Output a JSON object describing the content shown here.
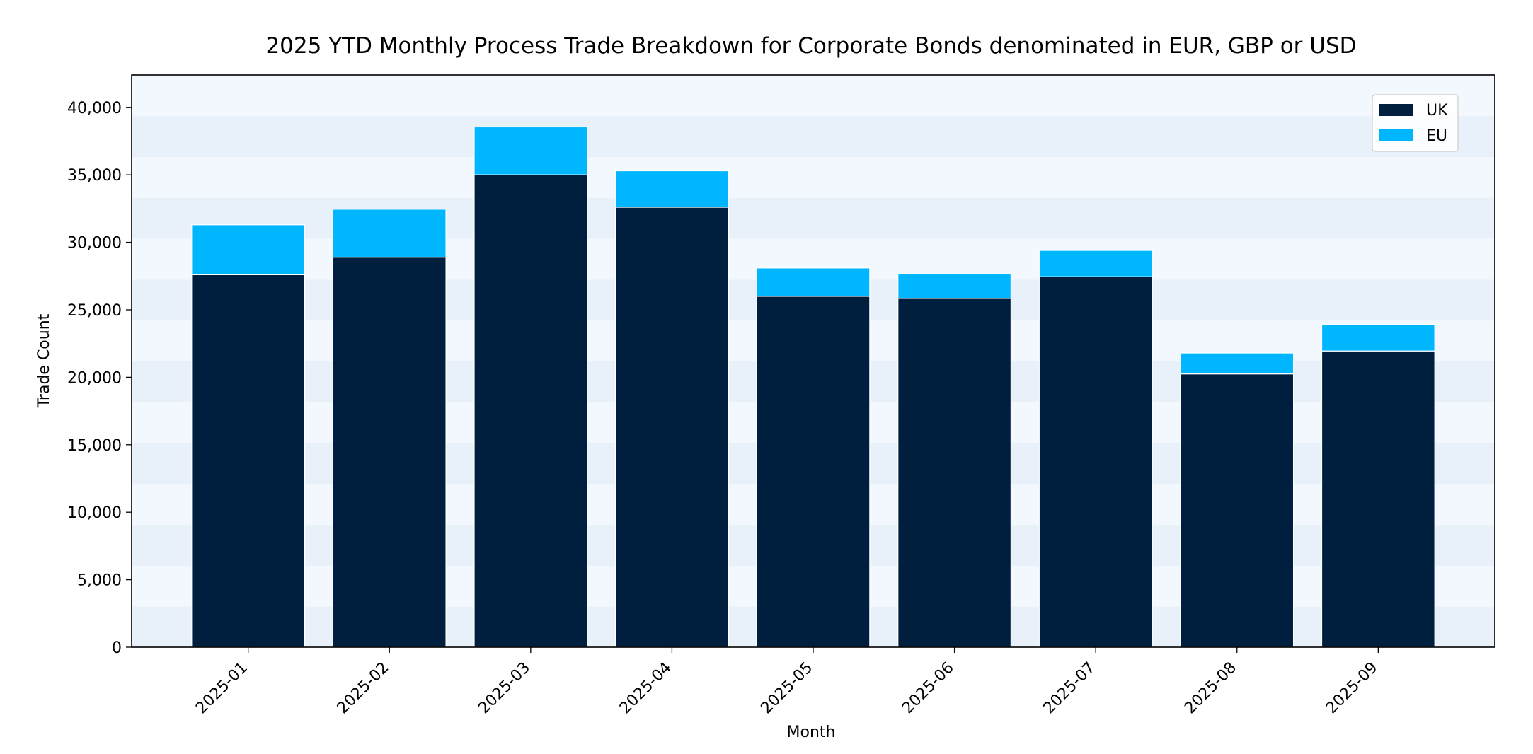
{
  "chart_data": {
    "type": "bar",
    "stacked": true,
    "title": "2025 YTD Monthly Process Trade Breakdown for Corporate Bonds denominated in EUR, GBP or USD",
    "xlabel": "Month",
    "ylabel": "Trade Count",
    "categories": [
      "2025-01",
      "2025-02",
      "2025-03",
      "2025-04",
      "2025-05",
      "2025-06",
      "2025-07",
      "2025-08",
      "2025-09"
    ],
    "series": [
      {
        "name": "UK",
        "color": "#001f3f",
        "values": [
          27600,
          28900,
          35000,
          32600,
          26000,
          25850,
          27450,
          20250,
          21950
        ]
      },
      {
        "name": "EU",
        "color": "#00b7ff",
        "values": [
          3700,
          3550,
          3550,
          2700,
          2100,
          1800,
          1950,
          1550,
          1950
        ]
      }
    ],
    "ylim": [
      0,
      42400
    ],
    "yticks": [
      0,
      5000,
      10000,
      15000,
      20000,
      25000,
      30000,
      35000,
      40000
    ],
    "ytick_labels": [
      "0",
      "5,000",
      "10,000",
      "15,000",
      "20,000",
      "25,000",
      "30,000",
      "35,000",
      "40,000"
    ],
    "legend_position": "top-right",
    "grid": false,
    "background_bands": true,
    "band_colors": [
      "#e8f1fa",
      "#f3f8fe"
    ]
  }
}
